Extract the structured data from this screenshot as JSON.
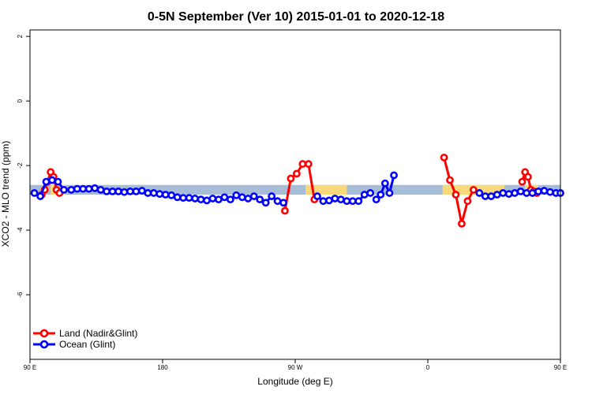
{
  "chart_data": {
    "type": "line",
    "title": "0-5N September (Ver 10)   2015-01-01 to 2020-12-18",
    "xlabel": "Longitude (deg E)",
    "ylabel": "XCO2 - MLO trend (ppm)",
    "xlim": [
      90,
      450
    ],
    "ylim": [
      -8,
      2.2
    ],
    "x_ticks": [
      {
        "value": 90,
        "label": "90 E"
      },
      {
        "value": 180,
        "label": "180"
      },
      {
        "value": 270,
        "label": "90 W"
      },
      {
        "value": 360,
        "label": "0"
      },
      {
        "value": 450,
        "label": "90 E"
      }
    ],
    "y_ticks": [
      {
        "value": 2,
        "label": "2"
      },
      {
        "value": 0,
        "label": "0"
      },
      {
        "value": -2,
        "label": "-2"
      },
      {
        "value": -4,
        "label": "-4"
      },
      {
        "value": -6,
        "label": "-6"
      }
    ],
    "bands": [
      {
        "name": "ocean-band",
        "color": "#a7bcd6",
        "segments": [
          [
            90,
            450
          ]
        ],
        "ymin": -2.9,
        "ymax": -2.6
      },
      {
        "name": "land-band",
        "color": "#f7d87a",
        "segments": [
          [
            104,
            114
          ],
          [
            277,
            305
          ],
          [
            370,
            400
          ],
          [
            388,
            412
          ],
          [
            426,
            435
          ]
        ],
        "ymin": -2.9,
        "ymax": -2.6
      }
    ],
    "series": [
      {
        "name": "Land (Nadir&Glint)",
        "color": "#ff0000",
        "segments": [
          {
            "x": [
              98,
              100,
              102,
              104,
              106,
              108,
              110
            ],
            "y": [
              -2.9,
              -2.75,
              -2.5,
              -2.2,
              -2.35,
              -2.75,
              -2.85
            ]
          },
          {
            "x": [
              263,
              267,
              271,
              275,
              279,
              283
            ],
            "y": [
              -3.4,
              -2.4,
              -2.25,
              -1.95,
              -1.95,
              -3.05
            ]
          },
          {
            "x": [
              371,
              375,
              379,
              383,
              387,
              391
            ],
            "y": [
              -1.75,
              -2.45,
              -2.9,
              -3.8,
              -3.1,
              -2.75
            ]
          },
          {
            "x": [
              424,
              426,
              428,
              430,
              432,
              434
            ],
            "y": [
              -2.5,
              -2.2,
              -2.35,
              -2.75,
              -2.8,
              -2.85
            ]
          }
        ]
      },
      {
        "name": "Ocean (Glint)",
        "color": "#0000ff",
        "segments": [
          {
            "x": [
              93,
              97,
              101,
              105,
              109,
              113,
              118,
              122,
              126,
              130,
              134,
              138,
              142,
              146,
              150,
              154,
              158,
              162,
              166,
              170,
              174,
              178,
              182,
              186,
              190,
              194,
              198,
              202,
              206,
              210,
              214,
              218,
              222,
              226,
              230,
              234,
              238,
              242,
              246,
              250,
              254,
              258,
              262
            ],
            "y": [
              -2.85,
              -2.95,
              -2.5,
              -2.45,
              -2.5,
              -2.75,
              -2.75,
              -2.72,
              -2.72,
              -2.72,
              -2.7,
              -2.75,
              -2.8,
              -2.8,
              -2.8,
              -2.82,
              -2.8,
              -2.8,
              -2.78,
              -2.85,
              -2.85,
              -2.88,
              -2.9,
              -2.92,
              -2.98,
              -3.0,
              -3.0,
              -3.02,
              -3.05,
              -3.08,
              -3.02,
              -3.05,
              -2.98,
              -3.05,
              -2.92,
              -2.98,
              -3.02,
              -2.95,
              -3.05,
              -3.15,
              -2.95,
              -3.1,
              -3.15
            ]
          },
          {
            "x": [
              285,
              289,
              293,
              297,
              301,
              305,
              309,
              313,
              317,
              321
            ],
            "y": [
              -2.95,
              -3.1,
              -3.08,
              -3.02,
              -3.05,
              -3.1,
              -3.1,
              -3.1,
              -2.9,
              -2.85
            ]
          },
          {
            "x": [
              325,
              328,
              331,
              334,
              337
            ],
            "y": [
              -3.05,
              -2.9,
              -2.55,
              -2.85,
              -2.3
            ]
          },
          {
            "x": [
              395,
              399,
              403,
              407,
              411,
              415,
              419,
              423,
              427,
              431,
              435,
              439,
              443,
              447,
              450
            ],
            "y": [
              -2.85,
              -2.95,
              -2.95,
              -2.9,
              -2.85,
              -2.88,
              -2.85,
              -2.8,
              -2.85,
              -2.85,
              -2.8,
              -2.78,
              -2.82,
              -2.85,
              -2.85
            ]
          }
        ]
      }
    ],
    "legend": {
      "position": "bottom-left",
      "entries": [
        "Land (Nadir&Glint)",
        "Ocean (Glint)"
      ]
    }
  }
}
